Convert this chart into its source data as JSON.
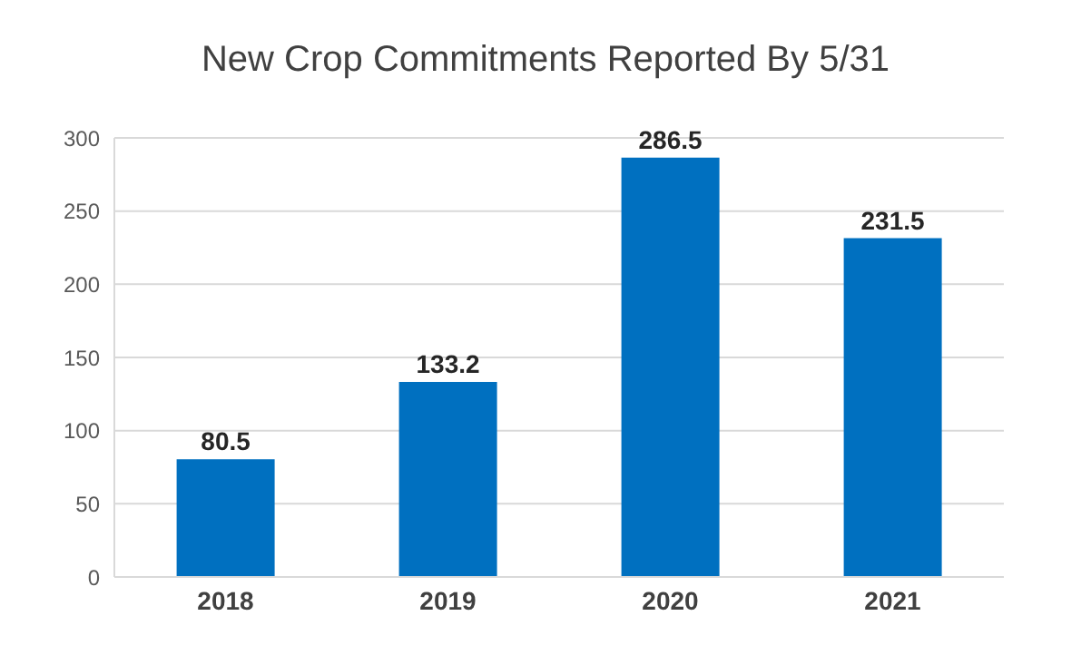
{
  "chart_data": {
    "type": "bar",
    "title": "New Crop Commitments Reported By 5/31",
    "categories": [
      "2018",
      "2019",
      "2020",
      "2021"
    ],
    "values": [
      80.5,
      133.2,
      286.5,
      231.5
    ],
    "color": "#0070c0",
    "ylim": [
      0,
      300
    ],
    "yticks": [
      0,
      50,
      100,
      150,
      200,
      250,
      300
    ],
    "grid": "y",
    "data_labels": true
  }
}
